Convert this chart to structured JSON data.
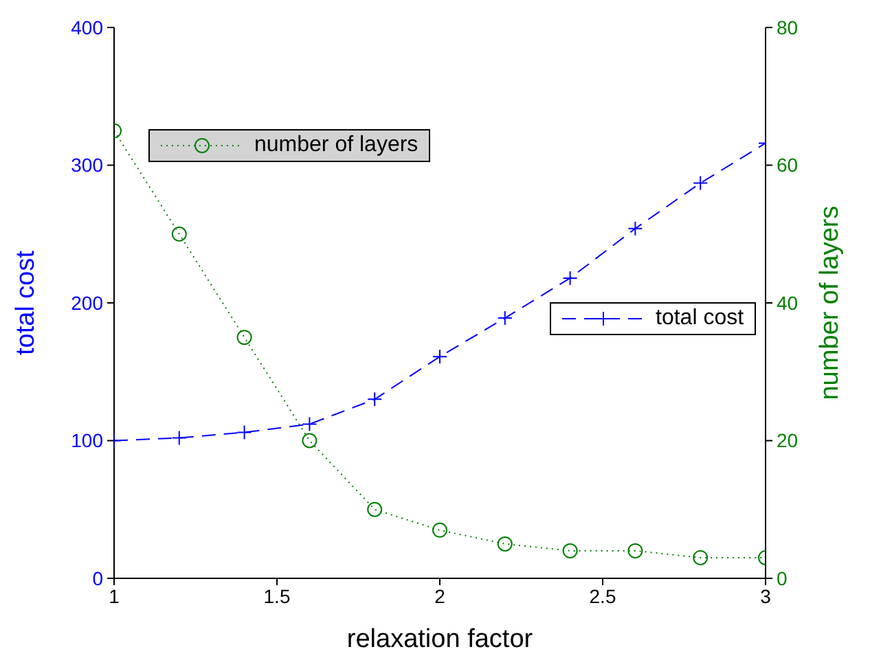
{
  "chart_data": {
    "type": "line",
    "xlabel": "relaxation factor",
    "ylabel": "total cost",
    "y2label": "number of  layers",
    "x": [
      1,
      1.2,
      1.4,
      1.6,
      1.8,
      2,
      2.2,
      2.4,
      2.6,
      2.8,
      3
    ],
    "xlim": [
      1,
      3
    ],
    "xticks": [
      1,
      1.5,
      2,
      2.5,
      3
    ],
    "ylim": [
      0,
      400
    ],
    "yticks": [
      0,
      100,
      200,
      300,
      400
    ],
    "y2lim": [
      0,
      80
    ],
    "y2ticks": [
      0,
      20,
      40,
      60,
      80
    ],
    "grid": false,
    "legend": "top",
    "series": [
      {
        "name": "total cost",
        "color": "#0000ff",
        "marker": "cross",
        "line_style": "dashed",
        "values": [
          100,
          102,
          106,
          112,
          130,
          161,
          189,
          218,
          254,
          287,
          316
        ]
      },
      {
        "name": "number of layers",
        "color": "#008000",
        "marker": "circle",
        "line_style": "dotted",
        "axis": "y2",
        "values": [
          65,
          50,
          35,
          20,
          10,
          7,
          5,
          4,
          4,
          3,
          3
        ]
      }
    ]
  }
}
